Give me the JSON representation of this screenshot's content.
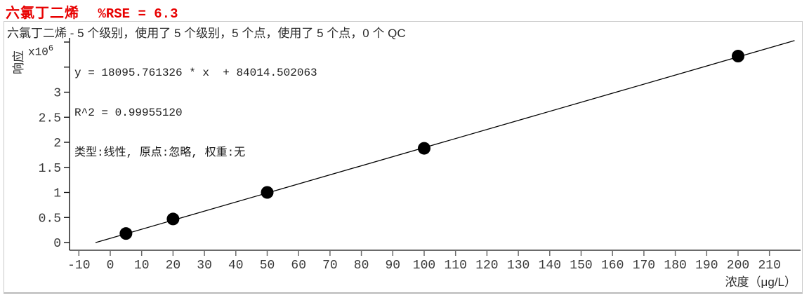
{
  "header": {
    "compound": "六氯丁二烯",
    "rse": "%RSE = 6.3",
    "subtitle": "六氯丁二烯 - 5 个级别，使用了 5 个级别，5 个点，使用了 5 个点，0 个 QC"
  },
  "annotation": {
    "equation": "y = 18095.761326 * x  + 84014.502063",
    "r_squared": "R^2 = 0.99955120",
    "fit_info": "类型:线性, 原点:忽略, 权重:无"
  },
  "colors": {
    "title_red": "#e80000",
    "axis_gray": "#6b6b6b",
    "tick_label": "#3a3a3a",
    "line_black": "#000000",
    "point_black": "#000000",
    "frame_gray": "#c9c9c9"
  },
  "chart_data": {
    "type": "scatter",
    "title": "六氯丁二烯 %RSE = 6.3",
    "xlabel": "浓度（μg/L）",
    "ylabel": "响应",
    "y_unit": {
      "base": "x10",
      "exp": "6"
    },
    "grid": false,
    "xlim": [
      -15,
      220
    ],
    "ylim": [
      0,
      4.1
    ],
    "x_ticks": [
      -10,
      0,
      10,
      20,
      30,
      40,
      50,
      60,
      70,
      80,
      90,
      100,
      110,
      120,
      130,
      140,
      150,
      160,
      170,
      180,
      190,
      200,
      210
    ],
    "y_ticks": [
      {
        "value": 0,
        "label": "0"
      },
      {
        "value": 0.5,
        "label": "0.5"
      },
      {
        "value": 1,
        "label": "1"
      },
      {
        "value": 1.5,
        "label": "1.5"
      },
      {
        "value": 2,
        "label": "2"
      },
      {
        "value": 2.5,
        "label": "2.5"
      },
      {
        "value": 3,
        "label": "3"
      }
    ],
    "y_ticks_unlabeled": [
      3.5,
      4
    ],
    "points": [
      {
        "x": 5,
        "y": 0.18
      },
      {
        "x": 20,
        "y": 0.47
      },
      {
        "x": 50,
        "y": 1.0
      },
      {
        "x": 100,
        "y": 1.88
      },
      {
        "x": 200,
        "y": 3.72
      }
    ],
    "fit_line": {
      "slope": 18095.761326,
      "intercept": 84014.502063,
      "r2": 0.9995512,
      "x_draw_range": [
        -4.7,
        218
      ]
    }
  }
}
